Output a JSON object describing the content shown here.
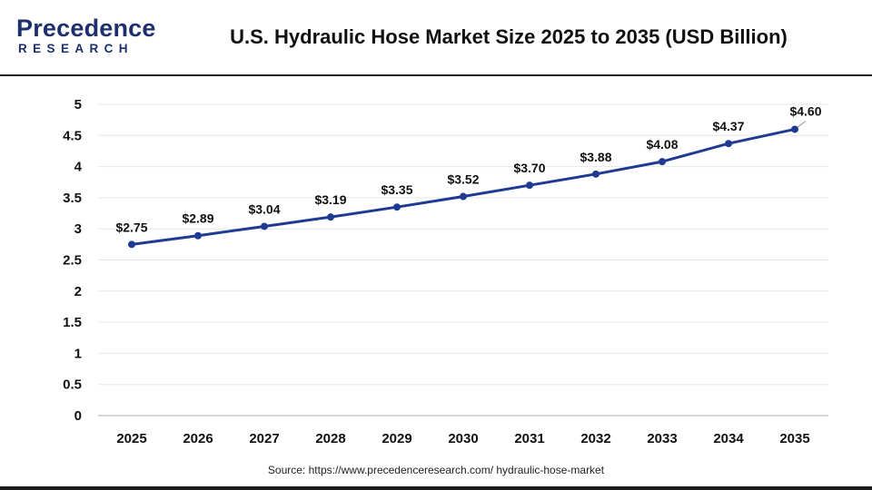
{
  "header": {
    "logo_name": "Precedence",
    "logo_sub": "RESEARCH",
    "title": "U.S. Hydraulic Hose Market Size 2025 to 2035 (USD Billion)"
  },
  "source": "Source: https://www.precedenceresearch.com/ hydraulic-hose-market",
  "colors": {
    "line": "#1f3a93",
    "marker": "#1f3a93",
    "grid": "#e6e6e6",
    "brand": "#1e2f6e"
  },
  "chart_data": {
    "type": "line",
    "title": "U.S. Hydraulic Hose Market Size 2025 to 2035 (USD Billion)",
    "xlabel": "",
    "ylabel": "",
    "categories": [
      "2025",
      "2026",
      "2027",
      "2028",
      "2029",
      "2030",
      "2031",
      "2032",
      "2033",
      "2034",
      "2035"
    ],
    "values": [
      2.75,
      2.89,
      3.04,
      3.19,
      3.35,
      3.52,
      3.7,
      3.88,
      4.08,
      4.37,
      4.6
    ],
    "data_labels": [
      "$2.75",
      "$2.89",
      "$3.04",
      "$3.19",
      "$3.35",
      "$3.52",
      "$3.70",
      "$3.88",
      "$4.08",
      "$4.37",
      "$4.60"
    ],
    "ylim": [
      0,
      5
    ],
    "yticks": [
      0,
      0.5,
      1,
      1.5,
      2,
      2.5,
      3,
      3.5,
      4,
      4.5,
      5
    ],
    "ytick_labels": [
      "0",
      "0.5",
      "1",
      "1.5",
      "2",
      "2.5",
      "3",
      "3.5",
      "4",
      "4.5",
      "5"
    ],
    "grid": true,
    "legend": "none"
  }
}
